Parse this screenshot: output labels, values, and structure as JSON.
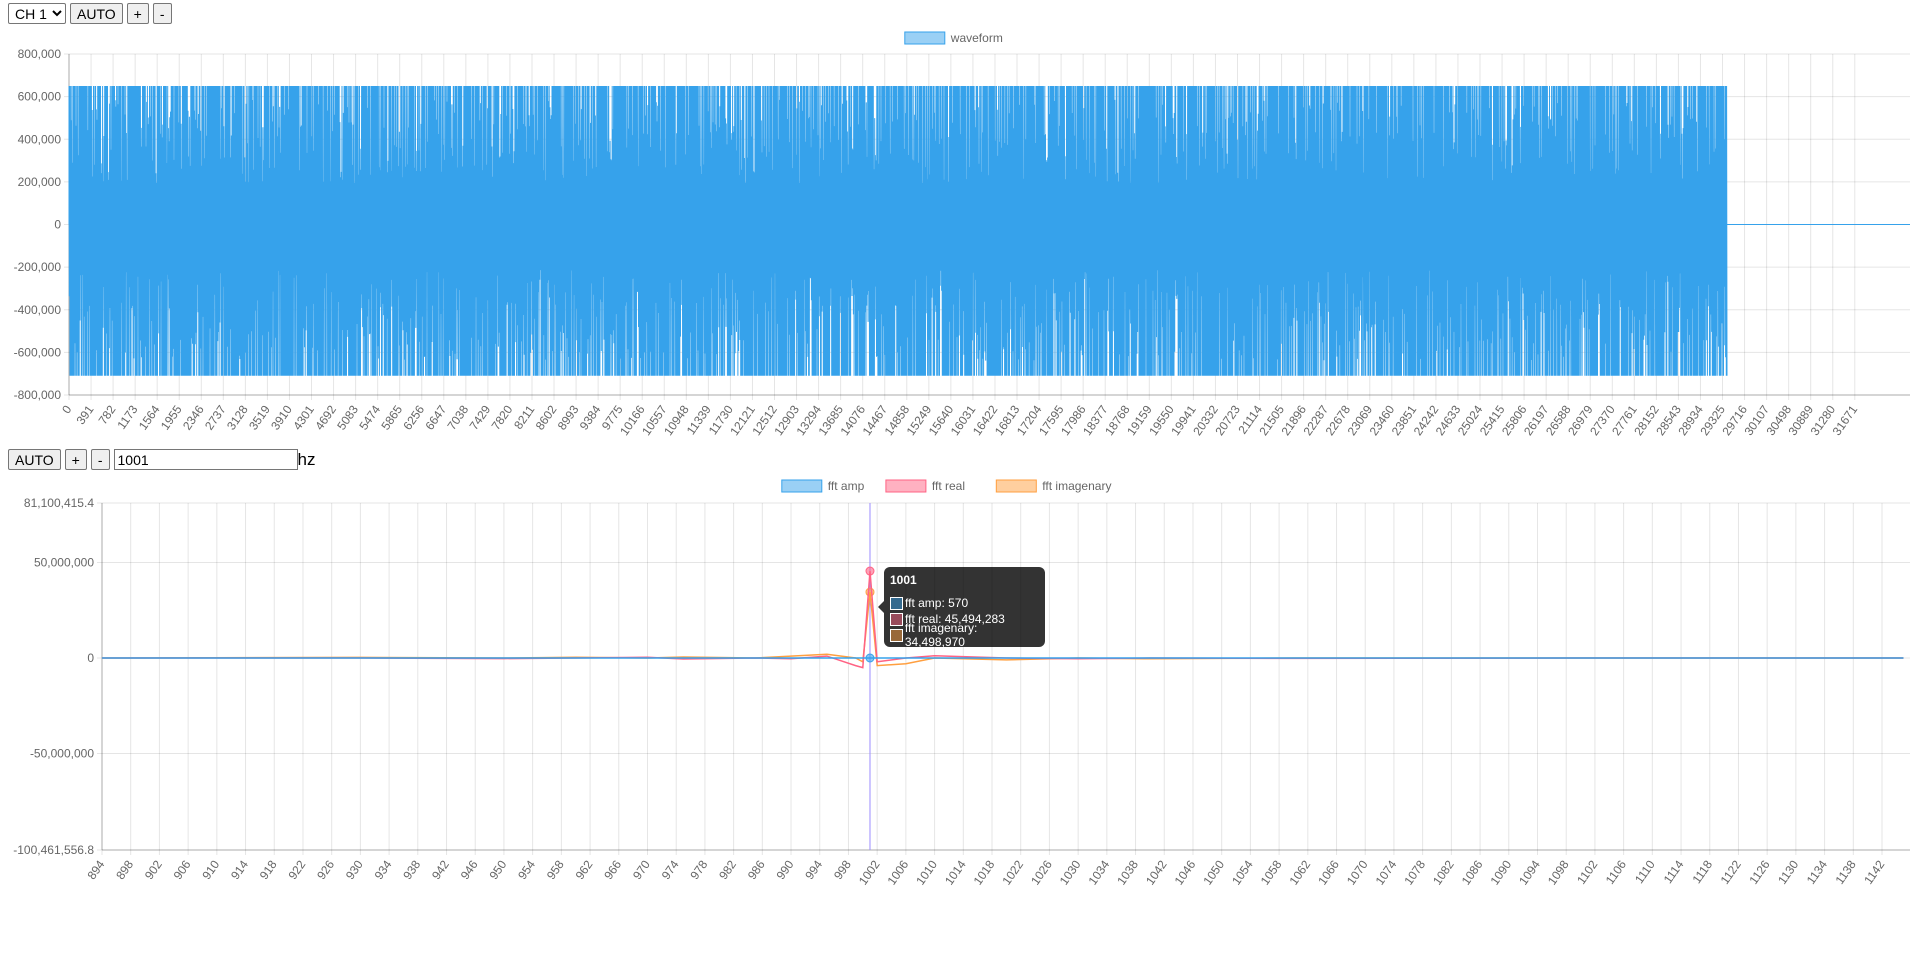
{
  "top_controls": {
    "channel_selected": "CH 1",
    "auto_label": "AUTO",
    "plus_label": "+",
    "minus_label": "-"
  },
  "fft_controls": {
    "auto_label": "AUTO",
    "plus_label": "+",
    "minus_label": "-",
    "freq_value": "1001",
    "unit_label": "hz"
  },
  "colors": {
    "blue": "#36A2EB",
    "red": "#FF6384",
    "orange": "#FF9F40",
    "cursor": "#9b8cff"
  },
  "chart_data": [
    {
      "type": "line",
      "legend": [
        "waveform"
      ],
      "legend_placement": "top-center",
      "ylim": [
        -800000,
        800000
      ],
      "y_ticks": [
        "800,000",
        "600,000",
        "400,000",
        "200,000",
        "0",
        "-200,000",
        "-400,000",
        "-600,000",
        "-800,000"
      ],
      "y_tick_values": [
        800000,
        600000,
        400000,
        200000,
        0,
        -200000,
        -400000,
        -600000,
        -800000
      ],
      "x_ticks": [
        "0",
        "391",
        "782",
        "1173",
        "1564",
        "1955",
        "2346",
        "2737",
        "3128",
        "3519",
        "3910",
        "4301",
        "4692",
        "5083",
        "5474",
        "5865",
        "6256",
        "6647",
        "7038",
        "7429",
        "7820",
        "8211",
        "8602",
        "8993",
        "9384",
        "9775",
        "10166",
        "10557",
        "10948",
        "11339",
        "11730",
        "12121",
        "12512",
        "12903",
        "13294",
        "13685",
        "14076",
        "14467",
        "14858",
        "15249",
        "15640",
        "16031",
        "16422",
        "16813",
        "17204",
        "17595",
        "17986",
        "18377",
        "18768",
        "19159",
        "19550",
        "19941",
        "20332",
        "20723",
        "21114",
        "21505",
        "21896",
        "22287",
        "22678",
        "23069",
        "23460",
        "23851",
        "24242",
        "24633",
        "25024",
        "25415",
        "25806",
        "26197",
        "26588",
        "26979",
        "27370",
        "27761",
        "28152",
        "28543",
        "28934",
        "29325",
        "29716",
        "30107",
        "30498",
        "30889",
        "31280",
        "31671"
      ],
      "xlim": [
        0,
        32650
      ],
      "series": [
        {
          "name": "waveform",
          "signal_end_sample": 29400,
          "max": 650000,
          "min": -710000,
          "after_end_value": 0
        }
      ],
      "grid": true
    },
    {
      "type": "line",
      "legend": [
        "fft amp",
        "fft real",
        "fft imagenary"
      ],
      "legend_placement": "top-center",
      "ylim": [
        -100461556.8,
        81100415.4
      ],
      "y_ticks": [
        "81,100,415.4",
        "50,000,000",
        "0",
        "-50,000,000",
        "-100,461,556.8"
      ],
      "y_tick_values": [
        81100415.4,
        50000000,
        0,
        -50000000,
        -100461556.8
      ],
      "x_ticks": [
        "894",
        "898",
        "902",
        "906",
        "910",
        "914",
        "918",
        "922",
        "926",
        "930",
        "934",
        "938",
        "942",
        "946",
        "950",
        "954",
        "958",
        "962",
        "966",
        "970",
        "974",
        "978",
        "982",
        "986",
        "990",
        "994",
        "998",
        "1002",
        "1006",
        "1010",
        "1014",
        "1018",
        "1022",
        "1026",
        "1030",
        "1034",
        "1038",
        "1042",
        "1046",
        "1050",
        "1054",
        "1058",
        "1062",
        "1066",
        "1070",
        "1074",
        "1078",
        "1082",
        "1086",
        "1090",
        "1094",
        "1098",
        "1102",
        "1106",
        "1110",
        "1114",
        "1118",
        "1122",
        "1126",
        "1130",
        "1134",
        "1138",
        "1142"
      ],
      "xlim": [
        894,
        1145.9
      ],
      "x": [
        894,
        930,
        950,
        960,
        970,
        975,
        985,
        990,
        995,
        999,
        1000,
        1001,
        1002,
        1006,
        1010,
        1020,
        1030,
        1040,
        1060,
        1100,
        1145
      ],
      "series": [
        {
          "name": "fft amp",
          "values": [
            0,
            0,
            0,
            0,
            0,
            0,
            0,
            0,
            0,
            0,
            0,
            570,
            0,
            0,
            0,
            0,
            0,
            0,
            0,
            0,
            0
          ]
        },
        {
          "name": "fft real",
          "values": [
            0,
            0,
            -300000,
            0,
            400000,
            -500000,
            0,
            -400000,
            1000000,
            -4000000,
            -5000000,
            45494283,
            -2000000,
            0,
            1200000,
            0,
            -400000,
            0,
            -200000,
            0,
            0
          ]
        },
        {
          "name": "fft imagenary",
          "values": [
            0,
            300000,
            0,
            400000,
            0,
            500000,
            0,
            1000000,
            2000000,
            0,
            -2000000,
            34498970,
            -4000000,
            -3000000,
            0,
            -1000000,
            0,
            -400000,
            0,
            0,
            0
          ]
        }
      ],
      "tooltip": {
        "title": "1001",
        "rows": [
          "fft amp: 570",
          "fft real: 45,494,283",
          "fft imagenary: 34,498,970"
        ]
      },
      "cursor_x": 1001,
      "grid": true
    }
  ]
}
